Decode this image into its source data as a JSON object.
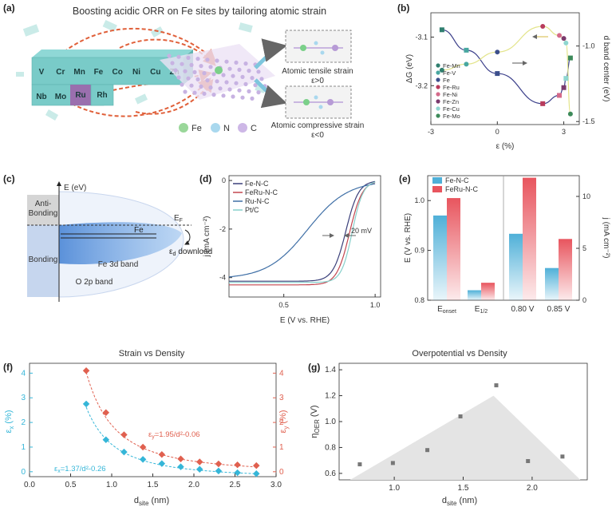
{
  "panel_labels": {
    "a": "(a)",
    "b": "(b)",
    "c": "(c)",
    "d": "(d)",
    "e": "(e)",
    "f": "(f)",
    "g": "(g)"
  },
  "panel_a": {
    "title": "Boosting acidic ORR on Fe sites by tailoring atomic strain",
    "metals_top": [
      "V",
      "Cr",
      "Mn",
      "Fe",
      "Co",
      "Ni",
      "Cu",
      "Zn"
    ],
    "metals_bottom": [
      "Nb",
      "Mo",
      "Ru",
      "Rh"
    ],
    "tensile_label": "Atomic tensile strain",
    "tensile_cond": "ε>0",
    "compressive_label": "Atomic compressive strain",
    "compressive_cond": "ε<0",
    "legend": [
      {
        "label": "Fe",
        "color": "#9ad79a"
      },
      {
        "label": "N",
        "color": "#a9d8ee"
      },
      {
        "label": "C",
        "color": "#cdb7e6"
      }
    ]
  },
  "panel_c": {
    "axis_label": "E (eV)",
    "anti_bonding": [
      "Anti-",
      "Bonding"
    ],
    "bonding": "Bonding",
    "fermi": "E",
    "fermi_sub": "F",
    "fe_label": "Fe",
    "eps_d": "ε",
    "eps_sub": "d",
    "download": "download",
    "fe3d": "Fe 3d band",
    "o2p": "O 2p band"
  },
  "chart_data": [
    {
      "id": "b",
      "type": "scatter",
      "xlabel": "ε (%)",
      "ylabel": "ΔG (eV)",
      "y2label": "d band center (eV)",
      "xlim": [
        -3,
        3.7
      ],
      "ylim": [
        -3.28,
        -3.05
      ],
      "y2lim": [
        -1.52,
        -0.78
      ],
      "xticks": [
        "-3",
        "0",
        "3"
      ],
      "yticks": [
        "-3.1",
        "-3.2"
      ],
      "y2ticks": [
        "-1.0",
        "-1.5"
      ],
      "legend": [
        "Fe-Mn",
        "Fe-V",
        "Fe",
        "Fe-Ru",
        "Fe-Ni",
        "Fe-Zn",
        "Fe-Cu",
        "Fe-Mo"
      ],
      "colors": [
        "#2f7f6f",
        "#48a7a0",
        "#3c4f8c",
        "#b83b5c",
        "#d46a8a",
        "#7b3a6d",
        "#8fd6d0",
        "#3d8a5a"
      ],
      "dg_points": [
        {
          "x": -2.5,
          "y": -3.085
        },
        {
          "x": -1.4,
          "y": -3.127
        },
        {
          "x": 0.0,
          "y": -3.175
        },
        {
          "x": 2.05,
          "y": -3.237
        },
        {
          "x": 2.8,
          "y": -3.22
        },
        {
          "x": 3.0,
          "y": -3.204
        },
        {
          "x": 3.1,
          "y": -3.185
        },
        {
          "x": 3.3,
          "y": -3.143
        }
      ],
      "dband_points": [
        {
          "x": -2.5,
          "y": -1.16
        },
        {
          "x": -1.4,
          "y": -1.12
        },
        {
          "x": 0.0,
          "y": -1.04
        },
        {
          "x": 2.05,
          "y": -0.87
        },
        {
          "x": 2.8,
          "y": -0.93
        },
        {
          "x": 3.0,
          "y": -0.95
        },
        {
          "x": 3.1,
          "y": -0.98
        },
        {
          "x": 3.3,
          "y": -1.45
        }
      ]
    },
    {
      "id": "d",
      "type": "line",
      "xlabel": "E (V vs. RHE)",
      "ylabel": "j (mA cm⁻²)",
      "xlim": [
        0.2,
        1.03
      ],
      "ylim": [
        -4.8,
        0.2
      ],
      "xticks": [
        "0.5",
        "1.0"
      ],
      "yticks": [
        "0",
        "-2",
        "-4"
      ],
      "annotation": "20 mV",
      "series": [
        {
          "name": "Fe-N-C",
          "color": "#3a3f7a",
          "jl": -4.15,
          "e_half": 0.84,
          "k": 0.035
        },
        {
          "name": "FeRu-N-C",
          "color": "#c2454f",
          "jl": -4.3,
          "e_half": 0.86,
          "k": 0.035
        },
        {
          "name": "Ru-N-C",
          "color": "#3f6fa6",
          "jl": -4.05,
          "e_half": 0.63,
          "k": 0.11
        },
        {
          "name": "Pt/C",
          "color": "#87d0cb",
          "jl": -4.2,
          "e_half": 0.875,
          "k": 0.03
        }
      ]
    },
    {
      "id": "e",
      "type": "bar",
      "ylabel": "E (V vs. RHE)",
      "y2label": "j (mA cm⁻²)",
      "ylim": [
        0.8,
        1.05
      ],
      "y2lim": [
        0,
        12
      ],
      "yticks": [
        "0.8",
        "0.9",
        "1.0"
      ],
      "y2ticks": [
        "0",
        "5",
        "10"
      ],
      "categories": [
        "E_onset",
        "E_1/2",
        "0.80 V",
        "0.85 V"
      ],
      "series": [
        {
          "name": "Fe-N-C",
          "color": "#4fb0d8",
          "values": [
            0.97,
            0.82,
            6.4,
            3.1
          ]
        },
        {
          "name": "FeRu-N-C",
          "color": "#e8555e",
          "values": [
            1.005,
            0.835,
            11.8,
            5.9
          ]
        }
      ]
    },
    {
      "id": "f",
      "type": "scatter",
      "title": "Strain vs Density",
      "xlabel": "d",
      "xlabel_sub": "site",
      "xlabel_unit": " (nm)",
      "ylabel": "ε",
      "ylabel_sub": "x",
      "ylabel_unit": " (%)",
      "y2label": "ε",
      "y2label_sub": "y",
      "y2label_unit": " (%)",
      "xlim": [
        0,
        3.0
      ],
      "ylim": [
        -0.2,
        4.4
      ],
      "xticks": [
        "0.0",
        "0.5",
        "1.0",
        "1.5",
        "2.0",
        "2.5",
        "3.0"
      ],
      "yticks": [
        "0",
        "1",
        "2",
        "3",
        "4"
      ],
      "fit_x": "ε",
      "fit_x_sub": "x",
      "fit_x_eq": "=1.37/d²-0.26",
      "fit_y": "ε",
      "fit_y_sub": "y",
      "fit_y_eq": "=1.95/d²-0.06",
      "series": [
        {
          "name": "εx",
          "color": "#35b6d8",
          "x": [
            0.69,
            0.93,
            1.15,
            1.38,
            1.61,
            1.84,
            2.07,
            2.3,
            2.53,
            2.76
          ],
          "y": [
            2.75,
            1.3,
            0.8,
            0.5,
            0.33,
            0.2,
            0.1,
            0.03,
            -0.04,
            -0.08
          ]
        },
        {
          "name": "εy",
          "color": "#e0604f",
          "x": [
            0.69,
            0.93,
            1.15,
            1.38,
            1.61,
            1.84,
            2.07,
            2.3,
            2.53,
            2.76
          ],
          "y": [
            4.1,
            2.4,
            1.5,
            1.0,
            0.7,
            0.52,
            0.4,
            0.32,
            0.28,
            0.25
          ]
        }
      ]
    },
    {
      "id": "g",
      "type": "scatter",
      "title": "Overpotential vs Density",
      "xlabel": "d",
      "xlabel_sub": "site",
      "xlabel_unit": " (nm)",
      "ylabel": "η",
      "ylabel_sub": "OER",
      "ylabel_unit": " (V)",
      "xlim": [
        0.6,
        2.4
      ],
      "ylim": [
        0.55,
        1.45
      ],
      "xticks": [
        "1.0",
        "1.5",
        "2.0"
      ],
      "yticks": [
        "0.6",
        "0.8",
        "1.0",
        "1.2",
        "1.4"
      ],
      "points": [
        {
          "x": 0.75,
          "y": 0.67
        },
        {
          "x": 0.99,
          "y": 0.68
        },
        {
          "x": 1.24,
          "y": 0.78
        },
        {
          "x": 1.48,
          "y": 1.04
        },
        {
          "x": 1.74,
          "y": 1.28
        },
        {
          "x": 1.97,
          "y": 0.695
        },
        {
          "x": 2.22,
          "y": 0.73
        }
      ],
      "triangle": [
        {
          "x": 0.68,
          "y": 0.55
        },
        {
          "x": 1.72,
          "y": 1.2
        },
        {
          "x": 2.35,
          "y": 0.55
        }
      ]
    }
  ]
}
